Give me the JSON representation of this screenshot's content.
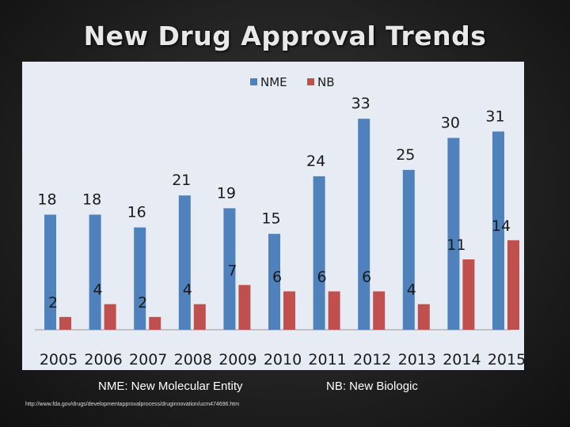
{
  "slide": {
    "title": "New Drug Approval Trends",
    "footnote_nme": "NME: New Molecular Entity",
    "footnote_nb": "NB: New Biologic",
    "source_url": "http://www.fda.gov/drugs/developmentapprovalprocess/druginnovation/ucm474696.htm"
  },
  "chart_data": {
    "type": "bar",
    "title": "",
    "xlabel": "",
    "ylabel": "",
    "ylim": [
      0,
      35
    ],
    "grid": false,
    "legend_position": "top-center",
    "categories": [
      "2005",
      "2006",
      "2007",
      "2008",
      "2009",
      "2010",
      "2011",
      "2012",
      "2013",
      "2014",
      "2015"
    ],
    "series": [
      {
        "name": "NME",
        "color": "#4f81bd",
        "values": [
          18,
          18,
          16,
          21,
          19,
          15,
          24,
          33,
          25,
          30,
          31
        ]
      },
      {
        "name": "NB",
        "color": "#c0504d",
        "values": [
          2,
          4,
          2,
          4,
          7,
          6,
          6,
          6,
          4,
          11,
          14
        ]
      }
    ]
  }
}
